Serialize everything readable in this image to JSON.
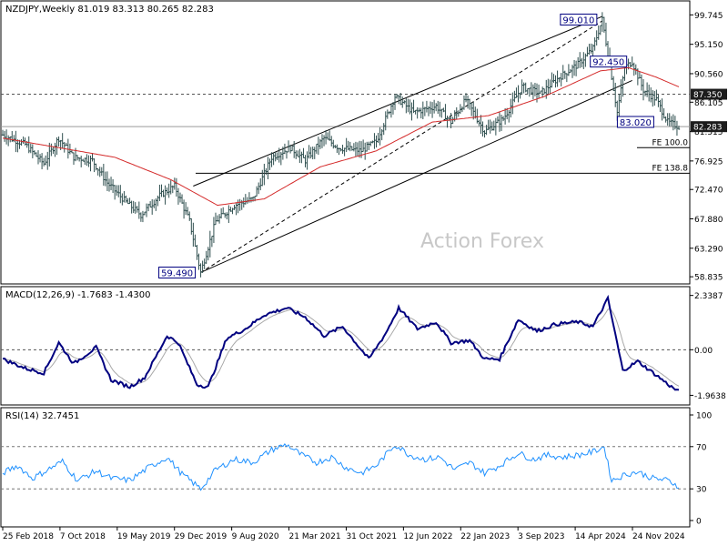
{
  "chart_data": {
    "type": "ohlc",
    "symbol": "NZDJPY",
    "timeframe": "Weekly",
    "header_text": "NZDJPY,Weekly  81.019 83.313 80.265 82.283",
    "ohlc_last": {
      "open": 81.019,
      "high": 83.313,
      "low": 80.265,
      "close": 82.283
    },
    "watermark": "Action Forex",
    "price_axis": {
      "ticks": [
        "99.745",
        "95.150",
        "90.560",
        "86.105",
        "81.515",
        "76.925",
        "72.470",
        "67.880",
        "63.290",
        "58.835"
      ],
      "ylim": [
        58.0,
        101.5
      ]
    },
    "x_tick_labels": [
      "25 Feb 2018",
      "7 Oct 2018",
      "19 May 2019",
      "29 Dec 2019",
      "9 Aug 2020",
      "21 Mar 2021",
      "31 Oct 2021",
      "12 Jun 2022",
      "22 Jan 2023",
      "3 Sep 2023",
      "14 Apr 2024",
      "24 Nov 2024"
    ],
    "price_keypoints": [
      {
        "week": 0,
        "v": 81.0
      },
      {
        "week": 12,
        "v": 79.5
      },
      {
        "week": 22,
        "v": 76.5
      },
      {
        "week": 30,
        "v": 80.5
      },
      {
        "week": 38,
        "v": 77.5
      },
      {
        "week": 48,
        "v": 77.0
      },
      {
        "week": 56,
        "v": 73.5
      },
      {
        "week": 66,
        "v": 70.5
      },
      {
        "week": 74,
        "v": 68.5
      },
      {
        "week": 84,
        "v": 71.5
      },
      {
        "week": 92,
        "v": 73.0
      },
      {
        "week": 100,
        "v": 67.5
      },
      {
        "week": 106,
        "v": 59.49
      },
      {
        "week": 114,
        "v": 67.5
      },
      {
        "week": 124,
        "v": 70.0
      },
      {
        "week": 134,
        "v": 71.0
      },
      {
        "week": 144,
        "v": 77.5
      },
      {
        "week": 154,
        "v": 79.0
      },
      {
        "week": 162,
        "v": 77.0
      },
      {
        "week": 172,
        "v": 80.5
      },
      {
        "week": 180,
        "v": 79.0
      },
      {
        "week": 192,
        "v": 78.5
      },
      {
        "week": 200,
        "v": 80.0
      },
      {
        "week": 210,
        "v": 87.0
      },
      {
        "week": 220,
        "v": 84.5
      },
      {
        "week": 232,
        "v": 85.5
      },
      {
        "week": 240,
        "v": 83.0
      },
      {
        "week": 248,
        "v": 86.5
      },
      {
        "week": 258,
        "v": 81.5
      },
      {
        "week": 268,
        "v": 83.5
      },
      {
        "week": 278,
        "v": 88.5
      },
      {
        "week": 288,
        "v": 87.5
      },
      {
        "week": 298,
        "v": 90.0
      },
      {
        "week": 308,
        "v": 92.0
      },
      {
        "week": 316,
        "v": 94.5
      },
      {
        "week": 321,
        "v": 99.01
      },
      {
        "week": 325,
        "v": 92.0
      },
      {
        "week": 329,
        "v": 84.5
      },
      {
        "week": 333,
        "v": 91.5
      },
      {
        "week": 337,
        "v": 92.45
      },
      {
        "week": 343,
        "v": 88.0
      },
      {
        "week": 350,
        "v": 86.5
      },
      {
        "week": 356,
        "v": 83.0
      },
      {
        "week": 362,
        "v": 82.283
      }
    ],
    "ma55_keypoints": [
      {
        "week": 0,
        "v": 80.5
      },
      {
        "week": 30,
        "v": 79.0
      },
      {
        "week": 60,
        "v": 77.5
      },
      {
        "week": 90,
        "v": 74.0
      },
      {
        "week": 115,
        "v": 70.0
      },
      {
        "week": 140,
        "v": 71.0
      },
      {
        "week": 170,
        "v": 76.0
      },
      {
        "week": 200,
        "v": 78.5
      },
      {
        "week": 230,
        "v": 83.0
      },
      {
        "week": 260,
        "v": 84.0
      },
      {
        "week": 290,
        "v": 87.0
      },
      {
        "week": 320,
        "v": 91.0
      },
      {
        "week": 335,
        "v": 91.5
      },
      {
        "week": 350,
        "v": 90.0
      },
      {
        "week": 362,
        "v": 88.5
      }
    ],
    "annotations": [
      {
        "text": "99.010",
        "week": 321,
        "value": 99.01
      },
      {
        "text": "92.450",
        "week": 337,
        "value": 92.45
      },
      {
        "text": "83.020",
        "week": 332,
        "value": 83.02
      },
      {
        "text": "59.490",
        "week": 106,
        "value": 59.49
      }
    ],
    "level_labels": [
      {
        "text": "87.350",
        "value": 87.35
      },
      {
        "text": "82.283",
        "value": 82.283
      }
    ],
    "fe_levels": [
      {
        "text": "FE 100.0",
        "value": 79.0
      },
      {
        "text": "FE 138.8",
        "value": 75.0
      }
    ],
    "channel": {
      "upper": [
        {
          "week": 102,
          "v": 73.0
        },
        {
          "week": 321,
          "v": 99.5
        }
      ],
      "lower": [
        {
          "week": 106,
          "v": 59.5
        },
        {
          "week": 337,
          "v": 89.5
        }
      ],
      "middle": [
        {
          "week": 106,
          "v": 59.5
        },
        {
          "week": 321,
          "v": 98.8
        }
      ]
    },
    "macd": {
      "label": "MACD(12,26,9) -1.7683 -1.4300",
      "ticks": [
        "2.3387",
        "0.00",
        "-1.9638"
      ],
      "ylim": [
        -2.3,
        2.6
      ],
      "line_keypoints": [
        {
          "week": 0,
          "v": -0.4
        },
        {
          "week": 12,
          "v": -0.8
        },
        {
          "week": 22,
          "v": -1.0
        },
        {
          "week": 30,
          "v": 0.3
        },
        {
          "week": 38,
          "v": -0.6
        },
        {
          "week": 50,
          "v": 0.1
        },
        {
          "week": 58,
          "v": -1.3
        },
        {
          "week": 68,
          "v": -1.6
        },
        {
          "week": 76,
          "v": -1.2
        },
        {
          "week": 88,
          "v": 0.6
        },
        {
          "week": 94,
          "v": 0.3
        },
        {
          "week": 104,
          "v": -1.5
        },
        {
          "week": 110,
          "v": -1.6
        },
        {
          "week": 120,
          "v": 0.5
        },
        {
          "week": 130,
          "v": 0.9
        },
        {
          "week": 140,
          "v": 1.5
        },
        {
          "week": 152,
          "v": 1.8
        },
        {
          "week": 162,
          "v": 1.4
        },
        {
          "week": 172,
          "v": 0.6
        },
        {
          "week": 182,
          "v": 1.0
        },
        {
          "week": 190,
          "v": 0.2
        },
        {
          "week": 196,
          "v": -0.4
        },
        {
          "week": 205,
          "v": 0.7
        },
        {
          "week": 212,
          "v": 1.8
        },
        {
          "week": 222,
          "v": 0.9
        },
        {
          "week": 232,
          "v": 1.2
        },
        {
          "week": 240,
          "v": 0.3
        },
        {
          "week": 250,
          "v": 0.4
        },
        {
          "week": 258,
          "v": -0.4
        },
        {
          "week": 266,
          "v": -0.4
        },
        {
          "week": 276,
          "v": 1.3
        },
        {
          "week": 286,
          "v": 0.8
        },
        {
          "week": 296,
          "v": 1.1
        },
        {
          "week": 308,
          "v": 1.2
        },
        {
          "week": 316,
          "v": 1.0
        },
        {
          "week": 324,
          "v": 2.2
        },
        {
          "week": 332,
          "v": -0.9
        },
        {
          "week": 340,
          "v": -0.5
        },
        {
          "week": 350,
          "v": -1.1
        },
        {
          "week": 358,
          "v": -1.6
        },
        {
          "week": 362,
          "v": -1.8
        }
      ]
    },
    "rsi": {
      "label": "RSI(14) 32.7451",
      "ticks": [
        "100",
        "70",
        "30",
        "0"
      ],
      "ylim": [
        0,
        100
      ],
      "line_keypoints": [
        {
          "week": 0,
          "v": 45
        },
        {
          "week": 8,
          "v": 52
        },
        {
          "week": 16,
          "v": 40
        },
        {
          "week": 24,
          "v": 48
        },
        {
          "week": 32,
          "v": 56
        },
        {
          "week": 40,
          "v": 38
        },
        {
          "week": 50,
          "v": 47
        },
        {
          "week": 58,
          "v": 40
        },
        {
          "week": 68,
          "v": 38
        },
        {
          "week": 78,
          "v": 50
        },
        {
          "week": 88,
          "v": 60
        },
        {
          "week": 96,
          "v": 44
        },
        {
          "week": 106,
          "v": 30
        },
        {
          "week": 114,
          "v": 48
        },
        {
          "week": 124,
          "v": 58
        },
        {
          "week": 134,
          "v": 55
        },
        {
          "week": 144,
          "v": 67
        },
        {
          "week": 152,
          "v": 72
        },
        {
          "week": 160,
          "v": 62
        },
        {
          "week": 168,
          "v": 55
        },
        {
          "week": 176,
          "v": 60
        },
        {
          "week": 184,
          "v": 50
        },
        {
          "week": 192,
          "v": 45
        },
        {
          "week": 200,
          "v": 52
        },
        {
          "week": 210,
          "v": 72
        },
        {
          "week": 218,
          "v": 62
        },
        {
          "week": 226,
          "v": 58
        },
        {
          "week": 234,
          "v": 60
        },
        {
          "week": 242,
          "v": 48
        },
        {
          "week": 250,
          "v": 55
        },
        {
          "week": 258,
          "v": 45
        },
        {
          "week": 266,
          "v": 52
        },
        {
          "week": 276,
          "v": 64
        },
        {
          "week": 284,
          "v": 58
        },
        {
          "week": 292,
          "v": 62
        },
        {
          "week": 300,
          "v": 60
        },
        {
          "week": 308,
          "v": 62
        },
        {
          "week": 316,
          "v": 65
        },
        {
          "week": 322,
          "v": 70
        },
        {
          "week": 326,
          "v": 38
        },
        {
          "week": 334,
          "v": 44
        },
        {
          "week": 340,
          "v": 46
        },
        {
          "week": 348,
          "v": 40
        },
        {
          "week": 356,
          "v": 38
        },
        {
          "week": 362,
          "v": 32.7
        }
      ]
    },
    "colors": {
      "bars": "#2f4f4f",
      "ma55": "#d42a2a",
      "channel": "#000000",
      "macd_main": "#000080",
      "macd_signal": "#a9a9a9",
      "rsi": "#1e90ff",
      "label_box": "#000080",
      "level_dash": "#555555",
      "watermark": "#c8c8c8"
    }
  }
}
